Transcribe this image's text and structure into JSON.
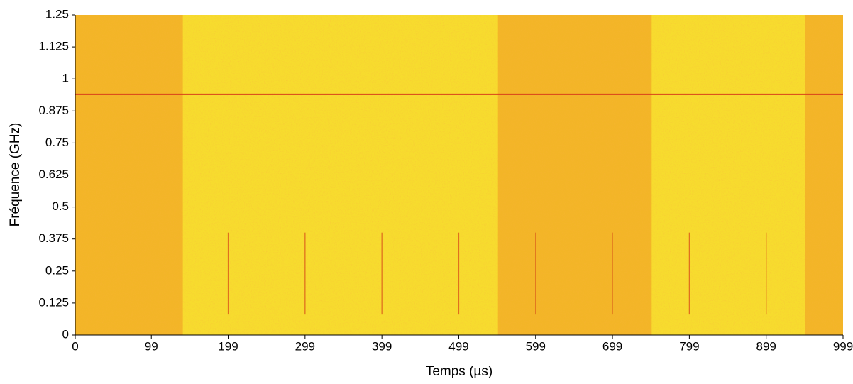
{
  "chart_data": {
    "type": "spectrogram",
    "xlabel": "Temps (µs)",
    "ylabel": "Fréquence (GHz)",
    "xlim": [
      0,
      999
    ],
    "ylim": [
      0,
      1.25
    ],
    "xticks": [
      0,
      99,
      199,
      299,
      399,
      499,
      599,
      699,
      799,
      899,
      999
    ],
    "yticks": [
      0,
      0.125,
      0.25,
      0.375,
      0.5,
      0.625,
      0.75,
      0.875,
      1,
      1.125,
      1.25
    ],
    "high_energy_spans": [
      [
        0,
        140
      ],
      [
        550,
        750
      ],
      [
        950,
        999
      ]
    ],
    "carrier_frequency": 0.94,
    "pulse_times": [
      199,
      299,
      399,
      499,
      599,
      699,
      799,
      899
    ],
    "pulse_band": [
      0.08,
      0.4
    ]
  }
}
